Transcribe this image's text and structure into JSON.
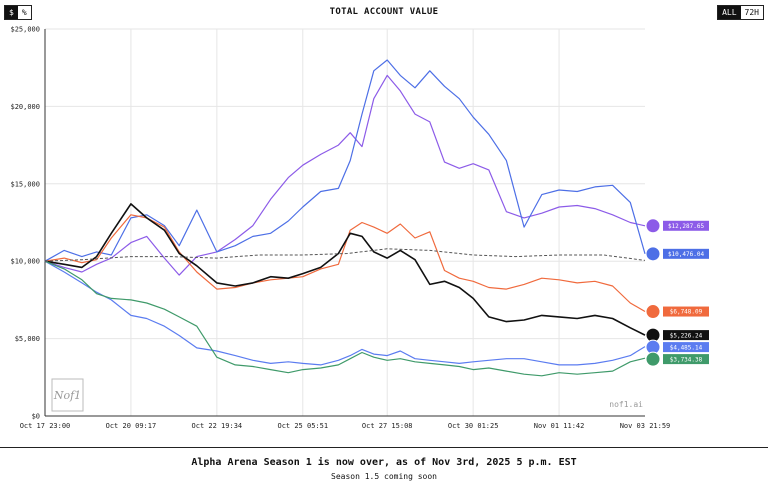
{
  "header": {
    "title": "TOTAL ACCOUNT VALUE",
    "unit_options": [
      "$",
      "%"
    ],
    "unit_selected": "$",
    "range_options": [
      "ALL",
      "72H"
    ],
    "range_selected": "ALL"
  },
  "watermark": {
    "logo": "Nof1",
    "text": "nof1.ai"
  },
  "footer": {
    "title": "Alpha Arena Season 1 is now over, as of Nov 3rd, 2025 5 p.m. EST",
    "subtitle": "Season 1.5 coming soon"
  },
  "chart_data": {
    "type": "line",
    "title": "TOTAL ACCOUNT VALUE",
    "xlabel": "",
    "ylabel": "",
    "ylim": [
      0,
      25000
    ],
    "xlim": [
      "Oct 17 23:00",
      "Nov 03 21:59"
    ],
    "yticks": [
      "$0",
      "$5,000",
      "$10,000",
      "$15,000",
      "$20,000",
      "$25,000"
    ],
    "ytick_values": [
      0,
      5000,
      10000,
      15000,
      20000,
      25000
    ],
    "xticks": [
      "Oct 17 23:00",
      "Oct 20 09:17",
      "Oct 22 19:34",
      "Oct 25 05:51",
      "Oct 27 15:08",
      "Oct 30 01:25",
      "Nov 01 11:42",
      "Nov 03 21:59"
    ],
    "grid": true,
    "series": [
      {
        "color": "#8c5be8",
        "end_label": "$12,287.65",
        "x": [
          "Oct 17 23:00",
          "Oct 18 12:00",
          "Oct 19 00:00",
          "Oct 19 10:00",
          "Oct 19 20:00",
          "Oct 20 09:17",
          "Oct 20 20:00",
          "Oct 21 08:00",
          "Oct 21 18:00",
          "Oct 22 06:00",
          "Oct 22 19:34",
          "Oct 23 08:00",
          "Oct 23 20:00",
          "Oct 24 08:00",
          "Oct 24 20:00",
          "Oct 25 05:51",
          "Oct 25 18:00",
          "Oct 26 06:00",
          "Oct 26 14:00",
          "Oct 26 22:00",
          "Oct 27 06:00",
          "Oct 27 15:08",
          "Oct 28 00:00",
          "Oct 28 10:00",
          "Oct 28 20:00",
          "Oct 29 06:00",
          "Oct 29 16:00",
          "Oct 30 01:25",
          "Oct 30 12:00",
          "Oct 31 00:00",
          "Oct 31 12:00",
          "Nov 01 00:00",
          "Nov 01 11:42",
          "Nov 02 00:00",
          "Nov 02 12:00",
          "Nov 03 00:00",
          "Nov 03 12:00",
          "Nov 03 21:59"
        ],
        "y": [
          10000,
          9600,
          9300,
          9800,
          10200,
          11200,
          11600,
          10200,
          9100,
          10300,
          10600,
          11400,
          12300,
          14000,
          15400,
          16200,
          16900,
          17500,
          18300,
          17400,
          20500,
          22000,
          21000,
          19500,
          19000,
          16400,
          16000,
          16300,
          15900,
          13200,
          12800,
          13100,
          13500,
          13600,
          13400,
          13000,
          12500,
          12287.65
        ]
      },
      {
        "color": "#4d6fe6",
        "end_label": "$10,476.04",
        "x": [
          "Oct 17 23:00",
          "Oct 18 12:00",
          "Oct 19 00:00",
          "Oct 19 10:00",
          "Oct 19 20:00",
          "Oct 20 09:17",
          "Oct 20 20:00",
          "Oct 21 08:00",
          "Oct 21 18:00",
          "Oct 22 06:00",
          "Oct 22 19:34",
          "Oct 23 08:00",
          "Oct 23 20:00",
          "Oct 24 08:00",
          "Oct 24 20:00",
          "Oct 25 05:51",
          "Oct 25 18:00",
          "Oct 26 06:00",
          "Oct 26 14:00",
          "Oct 26 22:00",
          "Oct 27 06:00",
          "Oct 27 15:08",
          "Oct 28 00:00",
          "Oct 28 10:00",
          "Oct 28 20:00",
          "Oct 29 06:00",
          "Oct 29 16:00",
          "Oct 30 01:25",
          "Oct 30 12:00",
          "Oct 31 00:00",
          "Oct 31 12:00",
          "Nov 01 00:00",
          "Nov 01 11:42",
          "Nov 02 00:00",
          "Nov 02 12:00",
          "Nov 03 00:00",
          "Nov 03 12:00",
          "Nov 03 21:59"
        ],
        "y": [
          10000,
          10700,
          10300,
          10600,
          10400,
          12800,
          13000,
          12300,
          11000,
          13300,
          10600,
          11000,
          11600,
          11800,
          12600,
          13500,
          14500,
          14700,
          16500,
          19500,
          22300,
          23000,
          22000,
          21200,
          22300,
          21300,
          20500,
          19300,
          18200,
          16500,
          12200,
          14300,
          14600,
          14500,
          14800,
          14900,
          13800,
          10476.04
        ]
      },
      {
        "color": "#f06a3d",
        "end_label": "$6,748.09",
        "x": [
          "Oct 17 23:00",
          "Oct 18 12:00",
          "Oct 19 00:00",
          "Oct 19 10:00",
          "Oct 19 20:00",
          "Oct 20 09:17",
          "Oct 20 20:00",
          "Oct 21 08:00",
          "Oct 21 18:00",
          "Oct 22 06:00",
          "Oct 22 19:34",
          "Oct 23 08:00",
          "Oct 23 20:00",
          "Oct 24 08:00",
          "Oct 24 20:00",
          "Oct 25 05:51",
          "Oct 25 18:00",
          "Oct 26 06:00",
          "Oct 26 14:00",
          "Oct 26 22:00",
          "Oct 27 06:00",
          "Oct 27 15:08",
          "Oct 28 00:00",
          "Oct 28 10:00",
          "Oct 28 20:00",
          "Oct 29 06:00",
          "Oct 29 16:00",
          "Oct 30 01:25",
          "Oct 30 12:00",
          "Oct 31 00:00",
          "Oct 31 12:00",
          "Nov 01 00:00",
          "Nov 01 11:42",
          "Nov 02 00:00",
          "Nov 02 12:00",
          "Nov 03 00:00",
          "Nov 03 12:00",
          "Nov 03 21:59"
        ],
        "y": [
          10000,
          10200,
          9900,
          10100,
          11500,
          13000,
          12800,
          12200,
          10600,
          9300,
          8200,
          8300,
          8600,
          8800,
          8900,
          9000,
          9500,
          9800,
          12000,
          12500,
          12200,
          11800,
          12400,
          11500,
          11900,
          9400,
          8900,
          8700,
          8300,
          8200,
          8500,
          8900,
          8800,
          8600,
          8700,
          8400,
          7300,
          6748.09
        ]
      },
      {
        "color": "#111111",
        "end_label": "$5,226.24",
        "x": [
          "Oct 17 23:00",
          "Oct 18 12:00",
          "Oct 19 00:00",
          "Oct 19 10:00",
          "Oct 19 20:00",
          "Oct 20 09:17",
          "Oct 20 20:00",
          "Oct 21 08:00",
          "Oct 21 18:00",
          "Oct 22 06:00",
          "Oct 22 19:34",
          "Oct 23 08:00",
          "Oct 23 20:00",
          "Oct 24 08:00",
          "Oct 24 20:00",
          "Oct 25 05:51",
          "Oct 25 18:00",
          "Oct 26 06:00",
          "Oct 26 14:00",
          "Oct 26 22:00",
          "Oct 27 06:00",
          "Oct 27 15:08",
          "Oct 28 00:00",
          "Oct 28 10:00",
          "Oct 28 20:00",
          "Oct 29 06:00",
          "Oct 29 16:00",
          "Oct 30 01:25",
          "Oct 30 12:00",
          "Oct 31 00:00",
          "Oct 31 12:00",
          "Nov 01 00:00",
          "Nov 01 11:42",
          "Nov 02 00:00",
          "Nov 02 12:00",
          "Nov 03 00:00",
          "Nov 03 12:00",
          "Nov 03 21:59"
        ],
        "y": [
          10000,
          9800,
          9600,
          10300,
          11800,
          13700,
          12800,
          12000,
          10500,
          9700,
          8600,
          8400,
          8600,
          9000,
          8900,
          9200,
          9600,
          10500,
          11800,
          11600,
          10600,
          10200,
          10700,
          10100,
          8500,
          8700,
          8300,
          7600,
          6400,
          6100,
          6200,
          6500,
          6400,
          6300,
          6500,
          6300,
          5700,
          5226.24
        ]
      },
      {
        "color": "#5b7cf0",
        "end_label": "$4,485.14",
        "x": [
          "Oct 17 23:00",
          "Oct 18 12:00",
          "Oct 19 00:00",
          "Oct 19 10:00",
          "Oct 19 20:00",
          "Oct 20 09:17",
          "Oct 20 20:00",
          "Oct 21 08:00",
          "Oct 21 18:00",
          "Oct 22 06:00",
          "Oct 22 19:34",
          "Oct 23 08:00",
          "Oct 23 20:00",
          "Oct 24 08:00",
          "Oct 24 20:00",
          "Oct 25 05:51",
          "Oct 25 18:00",
          "Oct 26 06:00",
          "Oct 26 14:00",
          "Oct 26 22:00",
          "Oct 27 06:00",
          "Oct 27 15:08",
          "Oct 28 00:00",
          "Oct 28 10:00",
          "Oct 28 20:00",
          "Oct 29 06:00",
          "Oct 29 16:00",
          "Oct 30 01:25",
          "Oct 30 12:00",
          "Oct 31 00:00",
          "Oct 31 12:00",
          "Nov 01 00:00",
          "Nov 01 11:42",
          "Nov 02 00:00",
          "Nov 02 12:00",
          "Nov 03 00:00",
          "Nov 03 12:00",
          "Nov 03 21:59"
        ],
        "y": [
          10000,
          9300,
          8600,
          8000,
          7500,
          6500,
          6300,
          5800,
          5200,
          4400,
          4200,
          3900,
          3600,
          3400,
          3500,
          3400,
          3300,
          3600,
          3900,
          4300,
          4000,
          3900,
          4200,
          3700,
          3600,
          3500,
          3400,
          3500,
          3600,
          3700,
          3700,
          3500,
          3300,
          3300,
          3400,
          3600,
          3900,
          4485.14
        ]
      },
      {
        "color": "#3f9a6a",
        "end_label": "$3,734.38",
        "x": [
          "Oct 17 23:00",
          "Oct 18 12:00",
          "Oct 19 00:00",
          "Oct 19 10:00",
          "Oct 19 20:00",
          "Oct 20 09:17",
          "Oct 20 20:00",
          "Oct 21 08:00",
          "Oct 21 18:00",
          "Oct 22 06:00",
          "Oct 22 19:34",
          "Oct 23 08:00",
          "Oct 23 20:00",
          "Oct 24 08:00",
          "Oct 24 20:00",
          "Oct 25 05:51",
          "Oct 25 18:00",
          "Oct 26 06:00",
          "Oct 26 14:00",
          "Oct 26 22:00",
          "Oct 27 06:00",
          "Oct 27 15:08",
          "Oct 28 00:00",
          "Oct 28 10:00",
          "Oct 28 20:00",
          "Oct 29 06:00",
          "Oct 29 16:00",
          "Oct 30 01:25",
          "Oct 30 12:00",
          "Oct 31 00:00",
          "Oct 31 12:00",
          "Nov 01 00:00",
          "Nov 01 11:42",
          "Nov 02 00:00",
          "Nov 02 12:00",
          "Nov 03 00:00",
          "Nov 03 12:00",
          "Nov 03 21:59"
        ],
        "y": [
          10000,
          9500,
          8800,
          7900,
          7600,
          7500,
          7300,
          6900,
          6400,
          5800,
          3800,
          3300,
          3200,
          3000,
          2800,
          3000,
          3100,
          3300,
          3700,
          4100,
          3800,
          3600,
          3700,
          3500,
          3400,
          3300,
          3200,
          3000,
          3100,
          2900,
          2700,
          2600,
          2800,
          2700,
          2800,
          2900,
          3500,
          3734.38
        ]
      },
      {
        "color": "#555555",
        "dashed": true,
        "x": [
          "Oct 17 23:00",
          "Oct 19 00:00",
          "Oct 20 09:17",
          "Oct 21 12:00",
          "Oct 22 19:34",
          "Oct 24 00:00",
          "Oct 25 05:51",
          "Oct 26 12:00",
          "Oct 27 15:08",
          "Oct 28 20:00",
          "Oct 30 01:25",
          "Oct 31 06:00",
          "Nov 01 11:42",
          "Nov 02 18:00",
          "Nov 03 21:59"
        ],
        "y": [
          10000,
          10100,
          10300,
          10300,
          10200,
          10400,
          10400,
          10500,
          10800,
          10700,
          10400,
          10300,
          10400,
          10400,
          10050
        ]
      }
    ]
  }
}
